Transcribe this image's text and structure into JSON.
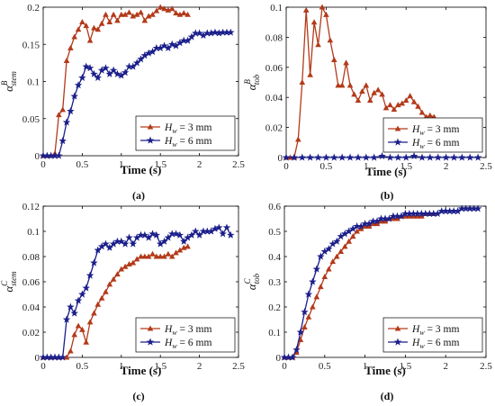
{
  "chart_data": [
    {
      "type": "line",
      "panel_label": "(a)",
      "xlabel": "Time (s)",
      "ylabel_symbol": "α",
      "ylabel_sup": "B",
      "ylabel_sub": "stem",
      "xlim": [
        0,
        2.5
      ],
      "ylim": [
        0,
        0.2
      ],
      "xticks": [
        0,
        0.5,
        1,
        1.5,
        2,
        2.5
      ],
      "xtick_labels": [
        "0",
        "0.5",
        "1",
        "1.5",
        "2",
        "2.5"
      ],
      "yticks": [
        0,
        0.05,
        0.1,
        0.15,
        0.2
      ],
      "ytick_labels": [
        "0",
        "0.05",
        "0.1",
        "0.15",
        "0.2"
      ],
      "legend_position": "bottom-right",
      "legend": [
        {
          "symbol": "H",
          "sub": "w",
          "text": " = 3 mm"
        },
        {
          "symbol": "H",
          "sub": "w",
          "text": " = 6 mm"
        }
      ],
      "series": [
        {
          "color": "#b33a1a",
          "marker": "triangle",
          "x": [
            0,
            0.05,
            0.1,
            0.15,
            0.2,
            0.25,
            0.3,
            0.35,
            0.4,
            0.45,
            0.5,
            0.55,
            0.6,
            0.65,
            0.7,
            0.75,
            0.8,
            0.85,
            0.9,
            0.95,
            1.0,
            1.05,
            1.1,
            1.15,
            1.2,
            1.25,
            1.3,
            1.35,
            1.4,
            1.45,
            1.5,
            1.55,
            1.6,
            1.65,
            1.7,
            1.75,
            1.8,
            1.85
          ],
          "y": [
            0,
            0,
            0,
            0.003,
            0.055,
            0.062,
            0.128,
            0.145,
            0.16,
            0.17,
            0.18,
            0.175,
            0.155,
            0.172,
            0.17,
            0.178,
            0.19,
            0.18,
            0.19,
            0.182,
            0.19,
            0.19,
            0.193,
            0.188,
            0.19,
            0.193,
            0.182,
            0.188,
            0.19,
            0.195,
            0.2,
            0.198,
            0.196,
            0.198,
            0.192,
            0.19,
            0.192,
            0.19
          ]
        },
        {
          "color": "#1b1f8a",
          "marker": "star",
          "x": [
            0,
            0.05,
            0.1,
            0.15,
            0.2,
            0.25,
            0.3,
            0.35,
            0.4,
            0.45,
            0.5,
            0.55,
            0.6,
            0.65,
            0.7,
            0.75,
            0.8,
            0.85,
            0.9,
            0.95,
            1.0,
            1.05,
            1.1,
            1.15,
            1.2,
            1.25,
            1.3,
            1.35,
            1.4,
            1.45,
            1.5,
            1.55,
            1.6,
            1.65,
            1.7,
            1.75,
            1.8,
            1.85,
            1.9,
            1.95,
            2.0,
            2.05,
            2.1,
            2.15,
            2.2,
            2.25,
            2.3,
            2.35,
            2.4
          ],
          "y": [
            0,
            0,
            0,
            0,
            0,
            0.02,
            0.045,
            0.06,
            0.08,
            0.095,
            0.105,
            0.12,
            0.118,
            0.11,
            0.105,
            0.115,
            0.118,
            0.11,
            0.115,
            0.11,
            0.108,
            0.112,
            0.12,
            0.12,
            0.125,
            0.13,
            0.135,
            0.138,
            0.14,
            0.145,
            0.145,
            0.148,
            0.145,
            0.15,
            0.148,
            0.152,
            0.155,
            0.155,
            0.16,
            0.165,
            0.165,
            0.162,
            0.165,
            0.165,
            0.166,
            0.165,
            0.166,
            0.166,
            0.166
          ]
        }
      ]
    },
    {
      "type": "line",
      "panel_label": "(b)",
      "xlabel": "Time (s)",
      "ylabel_symbol": "α",
      "ylabel_sup": "B",
      "ylabel_sub": "tob",
      "xlim": [
        0,
        2.5
      ],
      "ylim": [
        0,
        0.1
      ],
      "xticks": [
        0,
        0.5,
        1,
        1.5,
        2,
        2.5
      ],
      "xtick_labels": [
        "0",
        "0.5",
        "1",
        "1.5",
        "2",
        "2.5"
      ],
      "yticks": [
        0,
        0.02,
        0.04,
        0.06,
        0.08,
        0.1
      ],
      "ytick_labels": [
        "0",
        "0.02",
        "0.04",
        "0.06",
        "0.08",
        "0.1"
      ],
      "legend_position": "bottom-right",
      "legend": [
        {
          "symbol": "H",
          "sub": "w",
          "text": " = 3 mm"
        },
        {
          "symbol": "H",
          "sub": "w",
          "text": " = 6 mm"
        }
      ],
      "series": [
        {
          "color": "#b33a1a",
          "marker": "triangle",
          "x": [
            0,
            0.05,
            0.1,
            0.15,
            0.2,
            0.25,
            0.3,
            0.35,
            0.4,
            0.45,
            0.5,
            0.55,
            0.6,
            0.65,
            0.7,
            0.75,
            0.8,
            0.85,
            0.9,
            0.95,
            1.0,
            1.05,
            1.1,
            1.15,
            1.2,
            1.25,
            1.3,
            1.35,
            1.4,
            1.45,
            1.5,
            1.55,
            1.6,
            1.65,
            1.7,
            1.75,
            1.8,
            1.85
          ],
          "y": [
            0,
            0,
            0,
            0.012,
            0.05,
            0.098,
            0.055,
            0.09,
            0.075,
            0.1,
            0.095,
            0.078,
            0.065,
            0.048,
            0.048,
            0.063,
            0.048,
            0.042,
            0.038,
            0.044,
            0.048,
            0.038,
            0.043,
            0.045,
            0.042,
            0.033,
            0.035,
            0.032,
            0.035,
            0.036,
            0.038,
            0.041,
            0.037,
            0.034,
            0.03,
            0.027,
            0.028,
            0.027
          ]
        },
        {
          "color": "#1b1f8a",
          "marker": "star",
          "x": [
            0,
            0.1,
            0.2,
            0.3,
            0.4,
            0.5,
            0.6,
            0.7,
            0.8,
            0.9,
            1.0,
            1.1,
            1.2,
            1.3,
            1.4,
            1.5,
            1.6,
            1.7,
            1.8,
            1.9,
            2.0,
            2.1,
            2.2,
            2.3,
            2.4
          ],
          "y": [
            0,
            0,
            0,
            0,
            0,
            0,
            0,
            0,
            0,
            0,
            0,
            0,
            0.001,
            0,
            0,
            0,
            0.001,
            0,
            0,
            0,
            0,
            0,
            0,
            0,
            0
          ]
        }
      ]
    },
    {
      "type": "line",
      "panel_label": "(c)",
      "xlabel": "Time (s)",
      "ylabel_symbol": "α",
      "ylabel_sup": "C",
      "ylabel_sub": "stem",
      "xlim": [
        0,
        2.5
      ],
      "ylim": [
        0,
        0.12
      ],
      "xticks": [
        0,
        0.5,
        1,
        1.5,
        2,
        2.5
      ],
      "xtick_labels": [
        "0",
        "0.5",
        "1",
        "1.5",
        "2",
        "2.5"
      ],
      "yticks": [
        0,
        0.02,
        0.04,
        0.06,
        0.08,
        0.1,
        0.12
      ],
      "ytick_labels": [
        "0",
        "0.02",
        "0.04",
        "0.06",
        "0.08",
        "0.1",
        "0.12"
      ],
      "legend_position": "bottom-right",
      "legend": [
        {
          "symbol": "H",
          "sub": "w",
          "text": " = 3 mm"
        },
        {
          "symbol": "H",
          "sub": "w",
          "text": " = 6 mm"
        }
      ],
      "series": [
        {
          "color": "#b33a1a",
          "marker": "triangle",
          "x": [
            0,
            0.1,
            0.2,
            0.3,
            0.35,
            0.4,
            0.45,
            0.5,
            0.55,
            0.6,
            0.65,
            0.7,
            0.75,
            0.8,
            0.85,
            0.9,
            0.95,
            1.0,
            1.05,
            1.1,
            1.15,
            1.2,
            1.25,
            1.3,
            1.35,
            1.4,
            1.45,
            1.5,
            1.55,
            1.6,
            1.65,
            1.7,
            1.75,
            1.8,
            1.85
          ],
          "y": [
            0,
            0,
            0,
            0,
            0.005,
            0.018,
            0.025,
            0.022,
            0.012,
            0.028,
            0.035,
            0.042,
            0.047,
            0.052,
            0.058,
            0.062,
            0.066,
            0.07,
            0.072,
            0.074,
            0.075,
            0.078,
            0.08,
            0.08,
            0.08,
            0.082,
            0.08,
            0.08,
            0.08,
            0.082,
            0.08,
            0.083,
            0.085,
            0.087,
            0.088
          ]
        },
        {
          "color": "#1b1f8a",
          "marker": "star",
          "x": [
            0,
            0.05,
            0.1,
            0.15,
            0.2,
            0.25,
            0.3,
            0.35,
            0.4,
            0.45,
            0.5,
            0.55,
            0.6,
            0.65,
            0.7,
            0.75,
            0.8,
            0.85,
            0.9,
            0.95,
            1.0,
            1.05,
            1.1,
            1.15,
            1.2,
            1.25,
            1.3,
            1.35,
            1.4,
            1.45,
            1.5,
            1.55,
            1.6,
            1.65,
            1.7,
            1.75,
            1.8,
            1.85,
            1.9,
            1.95,
            2.0,
            2.05,
            2.1,
            2.15,
            2.2,
            2.25,
            2.3,
            2.35,
            2.4
          ],
          "y": [
            0,
            0,
            0,
            0,
            0,
            0,
            0.03,
            0.04,
            0.035,
            0.045,
            0.05,
            0.055,
            0.065,
            0.075,
            0.085,
            0.088,
            0.09,
            0.087,
            0.09,
            0.092,
            0.092,
            0.09,
            0.095,
            0.09,
            0.095,
            0.097,
            0.097,
            0.095,
            0.098,
            0.097,
            0.09,
            0.092,
            0.095,
            0.098,
            0.098,
            0.097,
            0.092,
            0.095,
            0.097,
            0.1,
            0.097,
            0.1,
            0.1,
            0.1,
            0.102,
            0.103,
            0.098,
            0.103,
            0.097
          ]
        }
      ]
    },
    {
      "type": "line",
      "panel_label": "(d)",
      "xlabel": "Time (s)",
      "ylabel_symbol": "α",
      "ylabel_sup": "C",
      "ylabel_sub": "tob",
      "xlim": [
        0,
        2.5
      ],
      "ylim": [
        0,
        0.6
      ],
      "xticks": [
        0,
        0.5,
        1,
        1.5,
        2,
        2.5
      ],
      "xtick_labels": [
        "0",
        "0.5",
        "1",
        "1.5",
        "2",
        "2.5"
      ],
      "yticks": [
        0,
        0.1,
        0.2,
        0.3,
        0.4,
        0.5,
        0.6
      ],
      "ytick_labels": [
        "0",
        "0.1",
        "0.2",
        "0.3",
        "0.4",
        "0.5",
        "0.6"
      ],
      "legend_position": "bottom-right",
      "legend": [
        {
          "symbol": "H",
          "sub": "w",
          "text": " = 3 mm"
        },
        {
          "symbol": "H",
          "sub": "w",
          "text": " = 6 mm"
        }
      ],
      "series": [
        {
          "color": "#b33a1a",
          "marker": "triangle",
          "x": [
            0,
            0.05,
            0.1,
            0.15,
            0.2,
            0.25,
            0.3,
            0.35,
            0.4,
            0.45,
            0.5,
            0.55,
            0.6,
            0.65,
            0.7,
            0.75,
            0.8,
            0.85,
            0.9,
            0.95,
            1.0,
            1.05,
            1.1,
            1.15,
            1.2,
            1.25,
            1.3,
            1.35,
            1.4,
            1.45,
            1.5,
            1.55,
            1.6,
            1.65,
            1.7,
            1.75,
            1.8,
            1.85
          ],
          "y": [
            0,
            0,
            0,
            0.02,
            0.07,
            0.12,
            0.16,
            0.2,
            0.24,
            0.28,
            0.32,
            0.35,
            0.38,
            0.4,
            0.42,
            0.44,
            0.46,
            0.48,
            0.5,
            0.51,
            0.52,
            0.52,
            0.53,
            0.53,
            0.54,
            0.54,
            0.55,
            0.55,
            0.55,
            0.56,
            0.56,
            0.56,
            0.56,
            0.56,
            0.56,
            0.57,
            0.57,
            0.57
          ]
        },
        {
          "color": "#1b1f8a",
          "marker": "star",
          "x": [
            0,
            0.05,
            0.1,
            0.15,
            0.2,
            0.25,
            0.3,
            0.35,
            0.4,
            0.45,
            0.5,
            0.55,
            0.6,
            0.65,
            0.7,
            0.75,
            0.8,
            0.85,
            0.9,
            0.95,
            1.0,
            1.05,
            1.1,
            1.15,
            1.2,
            1.25,
            1.3,
            1.35,
            1.4,
            1.45,
            1.5,
            1.55,
            1.6,
            1.65,
            1.7,
            1.75,
            1.8,
            1.85,
            1.9,
            1.95,
            2.0,
            2.05,
            2.1,
            2.15,
            2.2,
            2.25,
            2.3,
            2.35,
            2.4
          ],
          "y": [
            0,
            0,
            0,
            0.03,
            0.1,
            0.18,
            0.25,
            0.3,
            0.35,
            0.4,
            0.42,
            0.43,
            0.45,
            0.46,
            0.48,
            0.49,
            0.5,
            0.51,
            0.52,
            0.52,
            0.53,
            0.53,
            0.54,
            0.54,
            0.55,
            0.55,
            0.55,
            0.56,
            0.56,
            0.56,
            0.57,
            0.57,
            0.57,
            0.57,
            0.57,
            0.57,
            0.57,
            0.57,
            0.57,
            0.58,
            0.58,
            0.58,
            0.58,
            0.58,
            0.59,
            0.59,
            0.59,
            0.59,
            0.59
          ]
        }
      ]
    }
  ]
}
